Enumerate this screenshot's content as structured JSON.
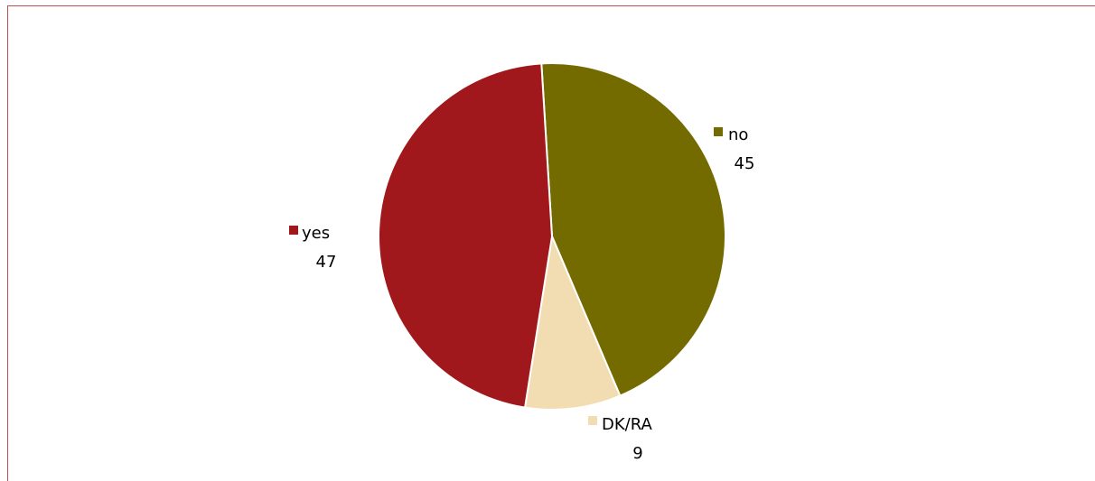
{
  "chart_data": {
    "type": "pie",
    "slices": [
      {
        "label": "no",
        "value": 45,
        "color": "#746B00"
      },
      {
        "label": "DK/RA",
        "value": 9,
        "color": "#F2DDB2"
      },
      {
        "label": "yes",
        "value": 47,
        "color": "#A0181B"
      }
    ],
    "data_labels_show": [
      "category",
      "value"
    ],
    "frame_color": "#C0504D",
    "background": "#ffffff"
  }
}
